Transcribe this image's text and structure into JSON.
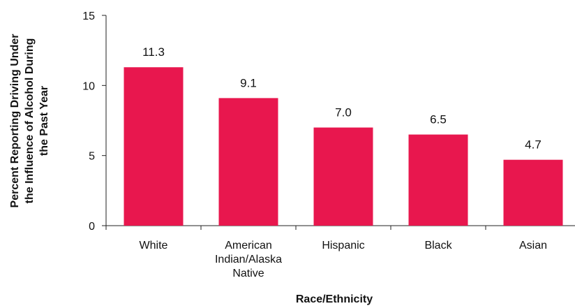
{
  "chart_data": {
    "type": "bar",
    "categories": [
      [
        "White"
      ],
      [
        "American",
        "Indian/Alaska",
        "Native"
      ],
      [
        "Hispanic"
      ],
      [
        "Black"
      ],
      [
        "Asian"
      ]
    ],
    "values": [
      11.3,
      9.1,
      7.0,
      6.5,
      4.7
    ],
    "value_labels": [
      "11.3",
      "9.1",
      "7.0",
      "6.5",
      "4.7"
    ],
    "xlabel": "Race/Ethnicity",
    "ylabel_lines": [
      "Percent Reporting Driving Under",
      "the Influence of Alcohol During",
      "the Past Year"
    ],
    "ylim": [
      0,
      15
    ],
    "yticks": [
      0,
      5,
      10,
      15
    ],
    "grid": false,
    "bar_color": "#e8174e"
  }
}
